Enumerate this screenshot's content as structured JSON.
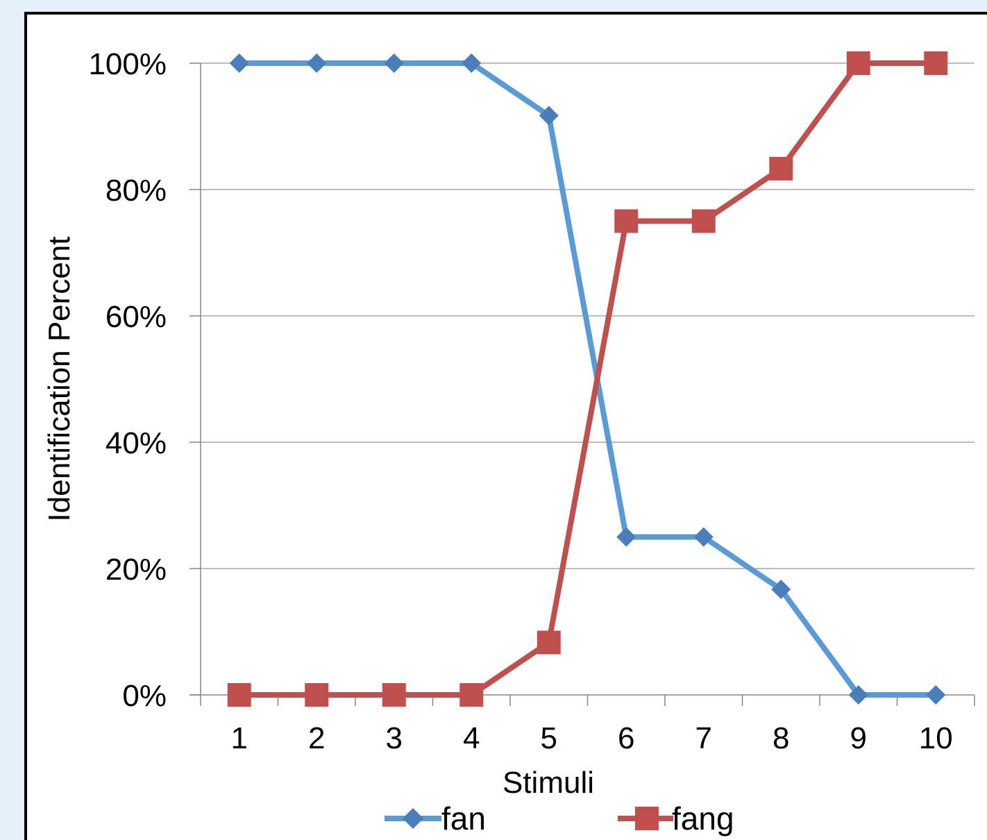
{
  "chart_data": {
    "type": "line",
    "categories": [
      "1",
      "2",
      "3",
      "4",
      "5",
      "6",
      "7",
      "8",
      "9",
      "10"
    ],
    "ylim": [
      0,
      100
    ],
    "yticks": [
      "0%",
      "20%",
      "40%",
      "60%",
      "80%",
      "100%"
    ],
    "xlabel": "Stimuli",
    "ylabel": "Identification Percent",
    "grid": true,
    "legend_position": "bottom",
    "series": [
      {
        "name": "fan",
        "marker": "diamond",
        "color": "#5b9bd5",
        "marker_color": "#4a7ebb",
        "values": [
          100,
          100,
          100,
          100,
          91.7,
          25,
          25,
          16.7,
          0,
          0
        ]
      },
      {
        "name": "fang",
        "marker": "square",
        "color": "#c0504d",
        "marker_color": "#c0504d",
        "values": [
          0,
          0,
          0,
          0,
          8.3,
          75,
          75,
          83.3,
          100,
          100
        ]
      }
    ]
  }
}
